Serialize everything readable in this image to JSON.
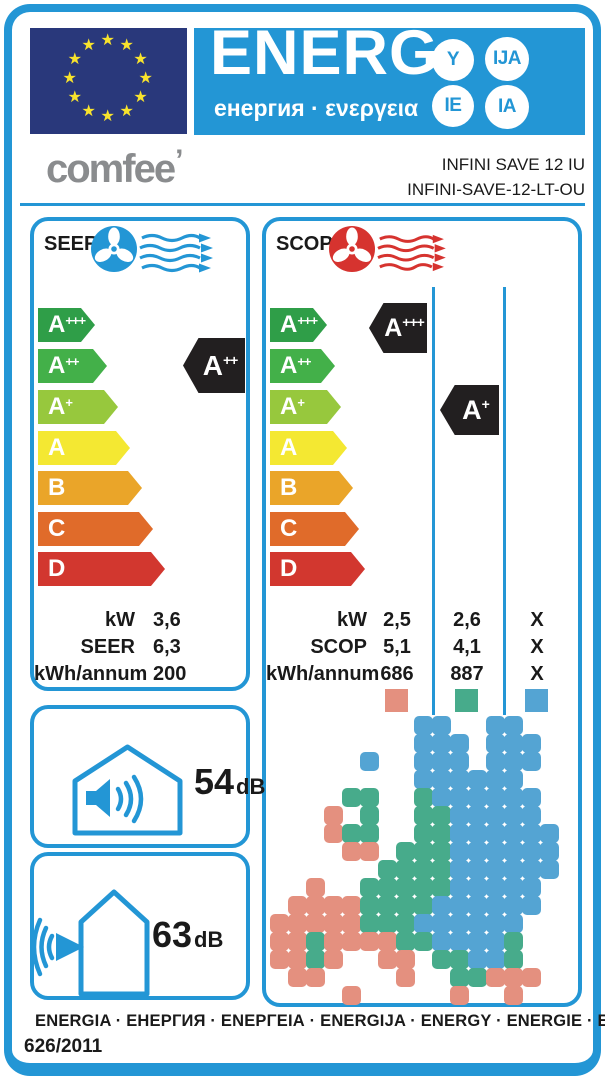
{
  "header": {
    "energ_title": "ENERG",
    "energ_subtitle": "енергия · ενεργεια",
    "suffix_circles": [
      "Y",
      "IJA",
      "IE",
      "IA"
    ],
    "brand": "comfee",
    "brand_mark": "’",
    "model_line1": "INFINI SAVE 12 IU",
    "model_line2": "INFINI-SAVE-12-LT-OU"
  },
  "scale": {
    "classes": [
      "A+++",
      "A++",
      "A+",
      "A",
      "B",
      "C",
      "D"
    ],
    "colors": [
      "#2f9e48",
      "#43b049",
      "#97c83d",
      "#f4e832",
      "#eaa529",
      "#e06b2a",
      "#d2372f"
    ]
  },
  "seer": {
    "label": "SEER",
    "rating": "A++",
    "rows": [
      {
        "label": "kW",
        "value": "3,6"
      },
      {
        "label": "SEER",
        "value": "6,3"
      },
      {
        "label": "kWh/annum",
        "value": "200"
      }
    ]
  },
  "scop": {
    "label": "SCOP",
    "row_labels": [
      "kW",
      "SCOP",
      "kWh/annum"
    ],
    "zones": [
      {
        "name": "warmer",
        "color": "#e4907f",
        "rating": "A+++",
        "values": [
          "2,5",
          "5,1",
          "686"
        ]
      },
      {
        "name": "average",
        "color": "#47ab8b",
        "rating": "A+",
        "values": [
          "2,6",
          "4,1",
          "887"
        ]
      },
      {
        "name": "colder",
        "color": "#54a4d3",
        "rating": null,
        "values": [
          "X",
          "X",
          "X"
        ]
      }
    ]
  },
  "noise": {
    "indoor": {
      "value": "54",
      "unit": "dB"
    },
    "outdoor": {
      "value": "63",
      "unit": "dB"
    }
  },
  "footer": {
    "energy_words": "ENERGIA · ЕНЕРГИЯ · ΕΝΕΡΓΕΙΑ · ENERGIJA · ENERGY · ENERGIE · ENERGI",
    "regulation": "626/2011"
  },
  "colors": {
    "label_blue": "#2396d5",
    "scop_red": "#d6332f",
    "flag_navy": "#29387b",
    "star_yellow": "#f8e32d",
    "brand_gray": "#8a8c8e",
    "pointer_black": "#221f20"
  }
}
